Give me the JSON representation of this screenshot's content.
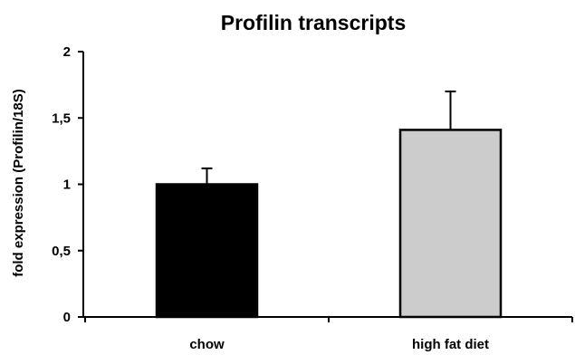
{
  "chart_data": {
    "type": "bar",
    "title": "Profilin transcripts",
    "xlabel": "",
    "ylabel": "fold expression (Profilin/18S)",
    "categories": [
      "chow",
      "high fat diet"
    ],
    "values": [
      1.0,
      1.41
    ],
    "error_upper": [
      0.12,
      0.29
    ],
    "bar_colors": [
      "#000000",
      "#cccccc"
    ],
    "ylim": [
      0,
      2
    ],
    "yticks": [
      0,
      0.5,
      1,
      1.5,
      2
    ],
    "ytick_labels": [
      "0",
      "0,5",
      "1",
      "1,5",
      "2"
    ],
    "grid": false,
    "legend": "none"
  }
}
